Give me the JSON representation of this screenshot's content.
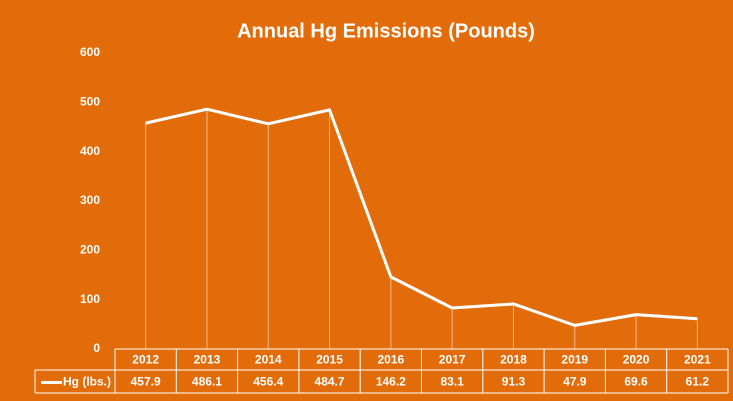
{
  "chart_data": {
    "type": "line",
    "title": "Annual Hg Emissions (Pounds)",
    "categories": [
      "2012",
      "2013",
      "2014",
      "2015",
      "2016",
      "2017",
      "2018",
      "2019",
      "2020",
      "2021"
    ],
    "series": [
      {
        "name": "Hg (lbs.)",
        "color": "#ffffff",
        "values": [
          457.9,
          486.1,
          456.4,
          484.7,
          146.2,
          83.1,
          91.3,
          47.9,
          69.6,
          61.2
        ]
      }
    ],
    "ylim": [
      0,
      600
    ],
    "yticks": [
      0,
      100,
      200,
      300,
      400,
      500,
      600
    ],
    "grid": false,
    "data_table": true,
    "background": "#e36c0a"
  }
}
